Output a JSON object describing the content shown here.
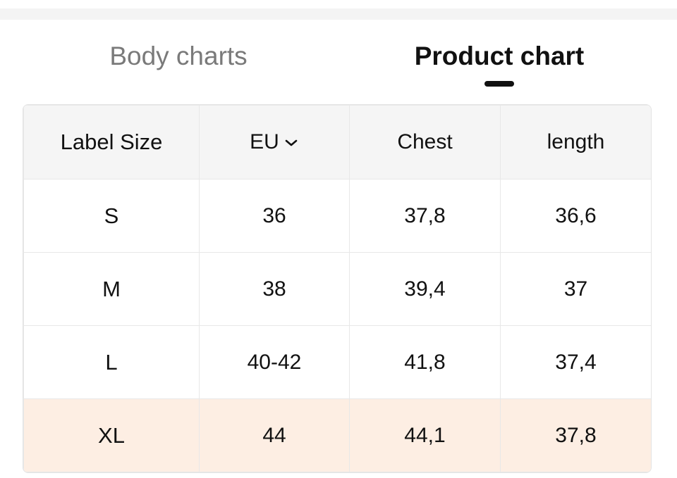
{
  "tabs": [
    "Body charts",
    "Product chart"
  ],
  "active_tab": 1,
  "table": {
    "header": [
      "Label Size",
      "EU",
      "Chest",
      "length"
    ],
    "rows": [
      [
        "S",
        "36",
        "37,8",
        "36,6"
      ],
      [
        "M",
        "38",
        "39,4",
        "37"
      ],
      [
        "L",
        "40-42",
        "41,8",
        "37,4"
      ],
      [
        "XL",
        "44",
        "44,1",
        "37,8"
      ]
    ],
    "highlighted_row": 3
  }
}
